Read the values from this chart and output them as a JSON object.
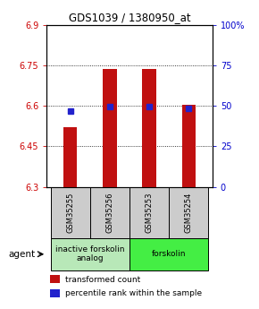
{
  "title": "GDS1039 / 1380950_at",
  "samples": [
    "GSM35255",
    "GSM35256",
    "GSM35253",
    "GSM35254"
  ],
  "bar_values": [
    6.52,
    6.735,
    6.735,
    6.605
  ],
  "percentile_values": [
    6.582,
    6.598,
    6.598,
    6.592
  ],
  "ylim": [
    6.3,
    6.9
  ],
  "yticks_left": [
    6.3,
    6.45,
    6.6,
    6.75,
    6.9
  ],
  "yticks_right": [
    0,
    25,
    50,
    75,
    100
  ],
  "ytick_labels_left": [
    "6.3",
    "6.45",
    "6.6",
    "6.75",
    "6.9"
  ],
  "ytick_labels_right": [
    "0",
    "25",
    "50",
    "75",
    "100%"
  ],
  "bar_color": "#c01010",
  "percentile_color": "#2222cc",
  "bar_bottom": 6.3,
  "gridline_y": [
    6.45,
    6.6,
    6.75
  ],
  "groups": [
    {
      "label": "inactive forskolin\nanalog",
      "samples": [
        0,
        1
      ],
      "color": "#b8e8b8"
    },
    {
      "label": "forskolin",
      "samples": [
        2,
        3
      ],
      "color": "#44ee44"
    }
  ],
  "agent_label": "agent",
  "legend_items": [
    {
      "color": "#c01010",
      "label": "transformed count"
    },
    {
      "color": "#2222cc",
      "label": "percentile rank within the sample"
    }
  ],
  "bar_width": 0.35,
  "label_color_left": "#cc0000",
  "label_color_right": "#0000cc",
  "bg_color": "#ffffff"
}
